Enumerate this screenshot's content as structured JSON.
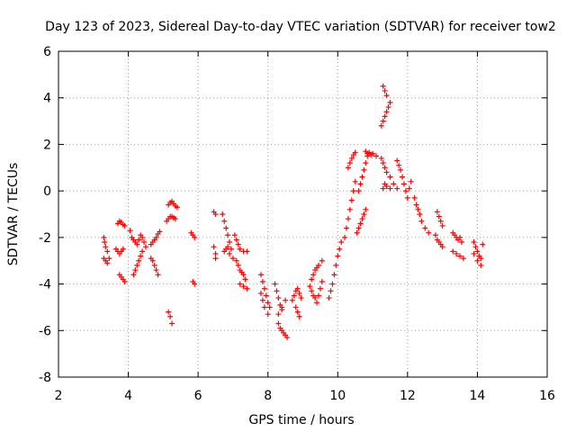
{
  "chart_data": {
    "type": "scatter",
    "title": "Day 123 of 2023, Sidereal Day-to-day VTEC variation (SDTVAR) for receiver tow2",
    "xlabel": "GPS time / hours",
    "ylabel": "SDTVAR / TECUs",
    "xlim": [
      2,
      16
    ],
    "ylim": [
      -8,
      6
    ],
    "xticks": [
      2,
      4,
      6,
      8,
      10,
      12,
      14,
      16
    ],
    "yticks": [
      -8,
      -6,
      -4,
      -2,
      0,
      2,
      4,
      6
    ],
    "grid": true,
    "marker": "+",
    "color": "#ff0000",
    "series": [
      {
        "name": "SDTVAR",
        "points": [
          [
            3.3,
            -2.0
          ],
          [
            3.32,
            -2.2
          ],
          [
            3.35,
            -2.4
          ],
          [
            3.4,
            -2.6
          ],
          [
            3.45,
            -2.9
          ],
          [
            3.3,
            -2.9
          ],
          [
            3.35,
            -3.0
          ],
          [
            3.4,
            -3.1
          ],
          [
            3.65,
            -2.5
          ],
          [
            3.7,
            -2.6
          ],
          [
            3.75,
            -2.7
          ],
          [
            3.8,
            -2.6
          ],
          [
            3.85,
            -2.5
          ],
          [
            3.7,
            -1.4
          ],
          [
            3.75,
            -1.3
          ],
          [
            3.8,
            -1.35
          ],
          [
            3.85,
            -1.45
          ],
          [
            3.9,
            -1.5
          ],
          [
            3.75,
            -3.6
          ],
          [
            3.8,
            -3.7
          ],
          [
            3.85,
            -3.8
          ],
          [
            3.9,
            -3.9
          ],
          [
            4.05,
            -1.7
          ],
          [
            4.1,
            -2.0
          ],
          [
            4.15,
            -2.1
          ],
          [
            4.2,
            -2.2
          ],
          [
            4.25,
            -2.3
          ],
          [
            4.3,
            -2.1
          ],
          [
            4.35,
            -1.9
          ],
          [
            4.4,
            -2.0
          ],
          [
            4.45,
            -2.2
          ],
          [
            4.5,
            -2.4
          ],
          [
            4.15,
            -3.6
          ],
          [
            4.2,
            -3.4
          ],
          [
            4.25,
            -3.2
          ],
          [
            4.3,
            -3.0
          ],
          [
            4.35,
            -2.8
          ],
          [
            4.4,
            -2.6
          ],
          [
            4.65,
            -2.3
          ],
          [
            4.7,
            -2.2
          ],
          [
            4.75,
            -2.1
          ],
          [
            4.8,
            -2.0
          ],
          [
            4.85,
            -1.85
          ],
          [
            4.9,
            -1.75
          ],
          [
            4.65,
            -2.9
          ],
          [
            4.7,
            -3.0
          ],
          [
            4.75,
            -3.2
          ],
          [
            4.8,
            -3.4
          ],
          [
            4.85,
            -3.6
          ],
          [
            5.1,
            -1.3
          ],
          [
            5.15,
            -1.2
          ],
          [
            5.2,
            -1.1
          ],
          [
            5.25,
            -1.1
          ],
          [
            5.3,
            -1.15
          ],
          [
            5.35,
            -1.2
          ],
          [
            5.15,
            -0.6
          ],
          [
            5.2,
            -0.5
          ],
          [
            5.25,
            -0.45
          ],
          [
            5.3,
            -0.55
          ],
          [
            5.35,
            -0.65
          ],
          [
            5.4,
            -0.7
          ],
          [
            5.15,
            -5.2
          ],
          [
            5.2,
            -5.4
          ],
          [
            5.25,
            -5.7
          ],
          [
            5.8,
            -1.8
          ],
          [
            5.85,
            -1.9
          ],
          [
            5.9,
            -2.0
          ],
          [
            5.85,
            -3.9
          ],
          [
            5.9,
            -4.0
          ],
          [
            6.45,
            -0.9
          ],
          [
            6.5,
            -1.0
          ],
          [
            6.45,
            -2.4
          ],
          [
            6.5,
            -2.7
          ],
          [
            6.5,
            -2.9
          ],
          [
            6.7,
            -1.0
          ],
          [
            6.75,
            -1.3
          ],
          [
            6.8,
            -1.6
          ],
          [
            6.85,
            -1.9
          ],
          [
            6.9,
            -2.2
          ],
          [
            6.95,
            -2.5
          ],
          [
            6.75,
            -2.6
          ],
          [
            6.8,
            -2.5
          ],
          [
            6.85,
            -2.4
          ],
          [
            6.9,
            -2.7
          ],
          [
            7.0,
            -2.9
          ],
          [
            7.05,
            -1.9
          ],
          [
            7.1,
            -2.1
          ],
          [
            7.15,
            -2.3
          ],
          [
            7.2,
            -2.5
          ],
          [
            7.3,
            -2.6
          ],
          [
            7.4,
            -2.6
          ],
          [
            7.1,
            -3.0
          ],
          [
            7.15,
            -3.2
          ],
          [
            7.2,
            -3.4
          ],
          [
            7.25,
            -3.5
          ],
          [
            7.3,
            -3.6
          ],
          [
            7.35,
            -3.8
          ],
          [
            7.2,
            -4.0
          ],
          [
            7.3,
            -4.1
          ],
          [
            7.4,
            -4.2
          ],
          [
            7.8,
            -3.6
          ],
          [
            7.85,
            -3.9
          ],
          [
            7.9,
            -4.2
          ],
          [
            7.95,
            -4.5
          ],
          [
            8.0,
            -4.8
          ],
          [
            8.05,
            -5.0
          ],
          [
            7.8,
            -4.4
          ],
          [
            7.85,
            -4.7
          ],
          [
            7.9,
            -5.0
          ],
          [
            8.0,
            -5.3
          ],
          [
            8.2,
            -4.0
          ],
          [
            8.25,
            -4.3
          ],
          [
            8.3,
            -4.6
          ],
          [
            8.35,
            -4.9
          ],
          [
            8.4,
            -5.1
          ],
          [
            8.3,
            -5.3
          ],
          [
            8.4,
            -5.0
          ],
          [
            8.5,
            -4.7
          ],
          [
            8.3,
            -5.7
          ],
          [
            8.35,
            -5.9
          ],
          [
            8.4,
            -6.0
          ],
          [
            8.45,
            -6.1
          ],
          [
            8.5,
            -6.2
          ],
          [
            8.55,
            -6.3
          ],
          [
            8.7,
            -4.7
          ],
          [
            8.75,
            -4.5
          ],
          [
            8.8,
            -4.3
          ],
          [
            8.85,
            -4.2
          ],
          [
            8.9,
            -4.4
          ],
          [
            8.95,
            -4.6
          ],
          [
            8.8,
            -5.0
          ],
          [
            8.85,
            -5.2
          ],
          [
            8.9,
            -5.4
          ],
          [
            9.2,
            -4.1
          ],
          [
            9.25,
            -4.3
          ],
          [
            9.3,
            -4.5
          ],
          [
            9.35,
            -4.6
          ],
          [
            9.4,
            -4.8
          ],
          [
            9.45,
            -4.5
          ],
          [
            9.5,
            -4.2
          ],
          [
            9.55,
            -3.9
          ],
          [
            9.25,
            -3.8
          ],
          [
            9.3,
            -3.6
          ],
          [
            9.35,
            -3.4
          ],
          [
            9.4,
            -3.3
          ],
          [
            9.45,
            -3.2
          ],
          [
            9.55,
            -3.0
          ],
          [
            9.75,
            -4.6
          ],
          [
            9.8,
            -4.3
          ],
          [
            9.85,
            -4.0
          ],
          [
            9.9,
            -3.6
          ],
          [
            9.95,
            -3.2
          ],
          [
            10.0,
            -2.8
          ],
          [
            10.05,
            -2.5
          ],
          [
            10.1,
            -2.2
          ],
          [
            10.2,
            -2.0
          ],
          [
            10.25,
            -1.6
          ],
          [
            10.3,
            -1.2
          ],
          [
            10.35,
            -0.8
          ],
          [
            10.4,
            -0.4
          ],
          [
            10.45,
            0.0
          ],
          [
            10.5,
            0.4
          ],
          [
            10.3,
            1.0
          ],
          [
            10.35,
            1.2
          ],
          [
            10.4,
            1.4
          ],
          [
            10.45,
            1.55
          ],
          [
            10.5,
            1.65
          ],
          [
            10.55,
            -1.8
          ],
          [
            10.6,
            -1.6
          ],
          [
            10.65,
            -1.4
          ],
          [
            10.7,
            -1.2
          ],
          [
            10.75,
            -1.0
          ],
          [
            10.8,
            -0.8
          ],
          [
            10.6,
            0.0
          ],
          [
            10.65,
            0.3
          ],
          [
            10.7,
            0.6
          ],
          [
            10.75,
            0.9
          ],
          [
            10.8,
            1.2
          ],
          [
            10.85,
            1.5
          ],
          [
            10.8,
            1.7
          ],
          [
            10.85,
            1.6
          ],
          [
            10.9,
            1.65
          ],
          [
            10.95,
            1.55
          ],
          [
            11.0,
            1.6
          ],
          [
            11.1,
            1.5
          ],
          [
            11.25,
            2.8
          ],
          [
            11.3,
            3.0
          ],
          [
            11.35,
            3.2
          ],
          [
            11.4,
            3.4
          ],
          [
            11.45,
            3.6
          ],
          [
            11.5,
            3.8
          ],
          [
            11.3,
            4.5
          ],
          [
            11.35,
            4.3
          ],
          [
            11.4,
            4.1
          ],
          [
            11.25,
            1.4
          ],
          [
            11.3,
            1.2
          ],
          [
            11.35,
            1.0
          ],
          [
            11.4,
            0.8
          ],
          [
            11.5,
            0.6
          ],
          [
            11.6,
            0.3
          ],
          [
            11.7,
            0.1
          ],
          [
            11.3,
            0.1
          ],
          [
            11.35,
            0.3
          ],
          [
            11.4,
            0.2
          ],
          [
            11.5,
            0.1
          ],
          [
            11.7,
            1.3
          ],
          [
            11.75,
            1.1
          ],
          [
            11.8,
            0.9
          ],
          [
            11.85,
            0.6
          ],
          [
            11.9,
            0.3
          ],
          [
            11.95,
            0.0
          ],
          [
            12.0,
            -0.3
          ],
          [
            12.05,
            0.1
          ],
          [
            12.1,
            0.4
          ],
          [
            12.2,
            -0.3
          ],
          [
            12.25,
            -0.6
          ],
          [
            12.3,
            -0.8
          ],
          [
            12.35,
            -1.0
          ],
          [
            12.4,
            -1.3
          ],
          [
            12.5,
            -1.6
          ],
          [
            12.6,
            -1.8
          ],
          [
            12.8,
            -1.9
          ],
          [
            12.85,
            -2.1
          ],
          [
            12.9,
            -2.2
          ],
          [
            12.95,
            -2.3
          ],
          [
            13.0,
            -2.4
          ],
          [
            12.85,
            -0.9
          ],
          [
            12.9,
            -1.1
          ],
          [
            12.95,
            -1.3
          ],
          [
            13.0,
            -1.5
          ],
          [
            13.3,
            -1.8
          ],
          [
            13.35,
            -1.9
          ],
          [
            13.4,
            -2.0
          ],
          [
            13.45,
            -2.1
          ],
          [
            13.5,
            -2.0
          ],
          [
            13.55,
            -2.2
          ],
          [
            13.3,
            -2.6
          ],
          [
            13.4,
            -2.7
          ],
          [
            13.5,
            -2.8
          ],
          [
            13.6,
            -2.9
          ],
          [
            13.9,
            -2.2
          ],
          [
            13.95,
            -2.4
          ],
          [
            14.0,
            -2.6
          ],
          [
            14.05,
            -2.8
          ],
          [
            14.1,
            -2.9
          ],
          [
            13.9,
            -2.7
          ],
          [
            14.0,
            -3.0
          ],
          [
            14.1,
            -3.2
          ],
          [
            14.15,
            -2.3
          ]
        ]
      }
    ]
  }
}
